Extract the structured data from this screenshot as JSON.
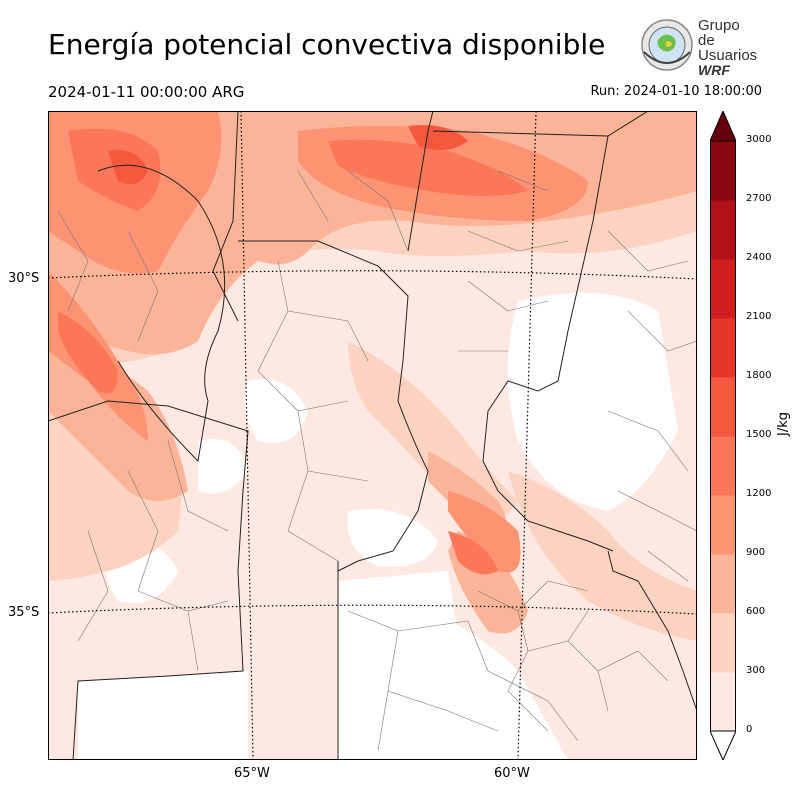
{
  "header": {
    "title": "Energía potencial convectiva disponible",
    "valid_time": "2024-01-11 00:00:00 ARG",
    "run_time": "Run: 2024-01-10 18:00:00"
  },
  "logo": {
    "line1": "Grupo de",
    "line2": "Usuarios",
    "line3": "WRF"
  },
  "map": {
    "lat_labels": [
      "30°S",
      "35°S"
    ],
    "lon_labels": [
      "65°W",
      "60°W"
    ]
  },
  "colorbar": {
    "units": "J/kg",
    "levels": [
      "0",
      "300",
      "600",
      "900",
      "1200",
      "1500",
      "1800",
      "2100",
      "2400",
      "2700",
      "3000"
    ],
    "colors": [
      "#fee9e2",
      "#fcd3c1",
      "#fcb499",
      "#fc9474",
      "#fb7757",
      "#f6573f",
      "#e83429",
      "#d11e1f",
      "#b11218",
      "#8a0812"
    ],
    "over_color": "#67000d"
  }
}
